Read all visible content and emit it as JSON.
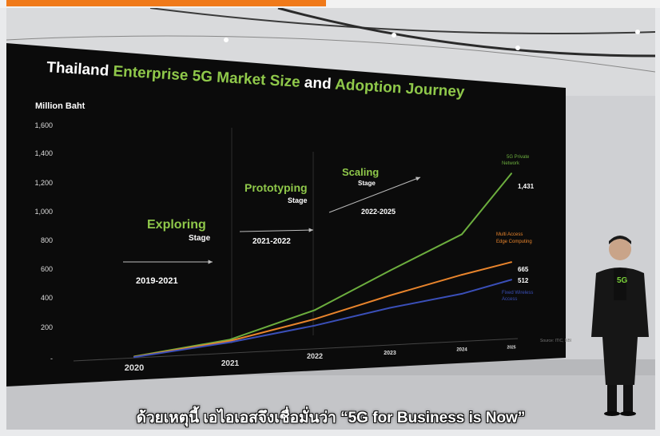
{
  "colors": {
    "accent": "#f07a1a",
    "title_white": "#ffffff",
    "title_green": "#8fc84a",
    "series_private": "#6cae3e",
    "series_edge": "#e8842c",
    "series_fwa": "#3a4fb8",
    "board": "#0b0b0b"
  },
  "chart_data": {
    "type": "line",
    "title_parts": [
      {
        "text": "Thailand ",
        "color": "white"
      },
      {
        "text": "Enterprise 5G ",
        "color": "green"
      },
      {
        "text": "Market Size ",
        "color": "green"
      },
      {
        "text": "and ",
        "color": "white"
      },
      {
        "text": "Adoption Journey",
        "color": "green"
      }
    ],
    "ylabel": "Million Baht",
    "y_ticks": [
      "1,600",
      "1,400",
      "1,200",
      "1,000",
      "800",
      "600",
      "400",
      "200",
      "-"
    ],
    "ylim": [
      0,
      1600
    ],
    "x": [
      "2020",
      "2021",
      "2022",
      "2023",
      "2024",
      "2025"
    ],
    "series": [
      {
        "name": "5G Private Network",
        "values": [
          10,
          100,
          300,
          600,
          900,
          1431
        ],
        "end_label": "1,431"
      },
      {
        "name": "Multi Access Edge Computing",
        "values": [
          8,
          90,
          230,
          400,
          560,
          665
        ],
        "end_label": "665"
      },
      {
        "name": "Fixed Wireless Access",
        "values": [
          5,
          80,
          180,
          300,
          400,
          512
        ],
        "end_label": "512"
      }
    ],
    "stages": [
      {
        "name": "Exploring",
        "sub": "Stage",
        "years": "2019-2021"
      },
      {
        "name": "Prototyping",
        "sub": "Stage",
        "years": "2021-2022"
      },
      {
        "name": "Scaling",
        "sub": "Stage",
        "years": "2022-2025"
      }
    ],
    "source": "Source: ITIC, NBI",
    "grid": false,
    "legend": "end-of-line labels"
  },
  "caption": "ด้วยเหตุนี้ เอไอเอสจึงเชื่อมั่นว่า “5G for Business is Now”"
}
